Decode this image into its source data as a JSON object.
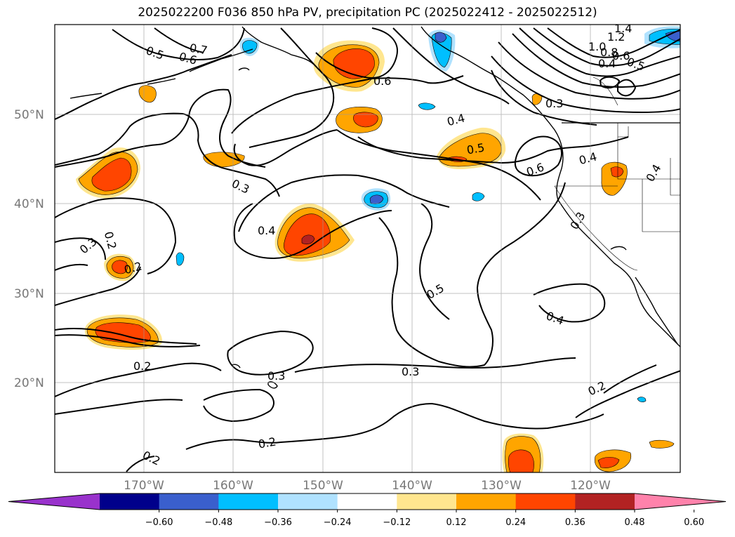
{
  "title": "2025022200 F036 850 hPa PV, precipitation PC (2025022412 - 2025022512)",
  "map": {
    "lat_labels": [
      "50°N",
      "40°N",
      "30°N",
      "20°N"
    ],
    "lon_labels": [
      "170°W",
      "160°W",
      "150°W",
      "140°W",
      "130°W",
      "120°W"
    ],
    "contour_labels": [
      {
        "text": "0.5",
        "near": "Aleutians west"
      },
      {
        "text": "0.6",
        "near": "Aleutians"
      },
      {
        "text": "0.7",
        "near": "Aleutians"
      },
      {
        "text": "1.4",
        "near": "NE corner"
      },
      {
        "text": "1.2",
        "near": "NE corner"
      },
      {
        "text": "1.0",
        "near": "NE corner"
      },
      {
        "text": "0.8",
        "near": "NE corner"
      },
      {
        "text": "0.6",
        "near": "NE corner"
      },
      {
        "text": "0.4",
        "near": "NE corner"
      },
      {
        "text": "0.5",
        "near": "NE corner"
      },
      {
        "text": "0.6",
        "near": "Gulf of Alaska"
      },
      {
        "text": "0.3",
        "near": "Vancouver Island"
      },
      {
        "text": "0.4",
        "near": "central north"
      },
      {
        "text": "0.5",
        "near": "central north"
      },
      {
        "text": "0.6",
        "near": "off Oregon"
      },
      {
        "text": "0.4",
        "near": "Pacific Northwest"
      },
      {
        "text": "0.4",
        "near": "Idaho"
      },
      {
        "text": "0.3",
        "near": "north central"
      },
      {
        "text": "0.3",
        "near": "California"
      },
      {
        "text": "0.4",
        "near": "mid Pacific"
      },
      {
        "text": "0.3",
        "near": "west"
      },
      {
        "text": "0.2",
        "near": "west"
      },
      {
        "text": "0.2",
        "near": "west"
      },
      {
        "text": "0.5",
        "near": "central"
      },
      {
        "text": "0.4",
        "near": "Baja"
      },
      {
        "text": "0.2",
        "near": "south west"
      },
      {
        "text": "0.3",
        "near": "south central"
      },
      {
        "text": "0.3",
        "near": "south central"
      },
      {
        "text": "0.2",
        "near": "south east"
      },
      {
        "text": "0.2",
        "near": "south"
      },
      {
        "text": "0.2",
        "near": "south west corner"
      }
    ]
  },
  "colorbar": {
    "colors": [
      "#9932cc",
      "#00008b",
      "#3a5fcd",
      "#00bfff",
      "#b0e2ff",
      "#ffffff",
      "#ffe68f",
      "#ffa500",
      "#ff4500",
      "#b22222",
      "#ff82ab"
    ],
    "tick_labels": [
      "−0.60",
      "−0.48",
      "−0.36",
      "−0.24",
      "−0.12",
      "0.12",
      "0.24",
      "0.36",
      "0.48",
      "0.60"
    ]
  }
}
